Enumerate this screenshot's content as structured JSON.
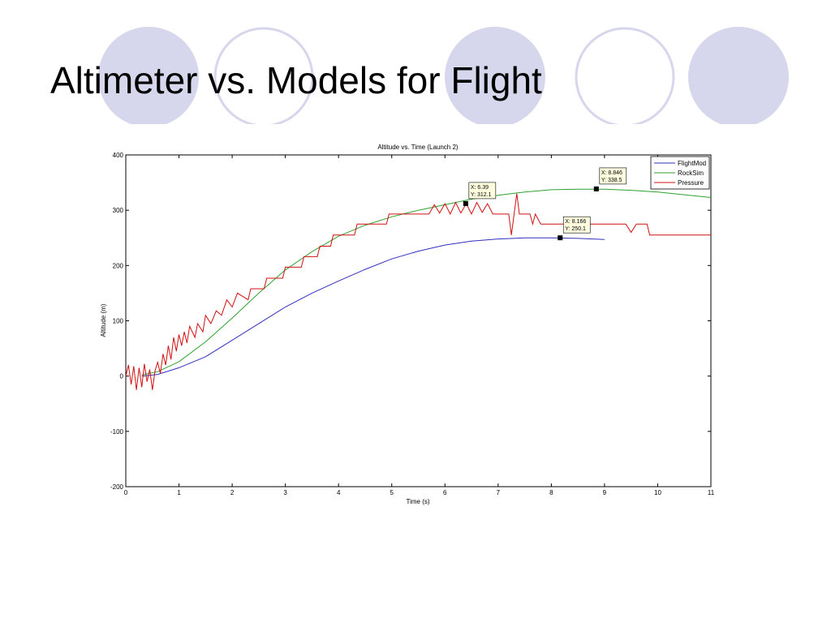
{
  "slide_title": "Altimeter vs. Models for Flight",
  "chart_data": {
    "type": "line",
    "title": "Altitude vs. Time (Launch 2)",
    "xlabel": "Time (s)",
    "ylabel": "Altitude (m)",
    "xlim": [
      0,
      11
    ],
    "xticks": [
      0,
      1,
      2,
      3,
      4,
      5,
      6,
      7,
      8,
      9,
      10,
      11
    ],
    "ylim": [
      -200,
      400
    ],
    "yticks": [
      -200,
      -100,
      0,
      100,
      200,
      300,
      400
    ],
    "legend": "top-right",
    "series": [
      {
        "name": "FlightMod",
        "color": "#3030c0",
        "x": [
          0.3,
          0.6,
          1,
          1.5,
          2,
          2.5,
          3,
          3.5,
          4,
          4.5,
          5,
          5.5,
          6,
          6.5,
          7,
          7.5,
          8,
          8.5,
          9
        ],
        "values": [
          0,
          3,
          15,
          35,
          65,
          95,
          125,
          150,
          172,
          193,
          212,
          226,
          237,
          244,
          248,
          250,
          250,
          249,
          247
        ]
      },
      {
        "name": "RockSim",
        "color": "#30a030",
        "x": [
          0.3,
          0.6,
          1,
          1.5,
          2,
          2.5,
          3,
          3.5,
          4,
          4.5,
          5,
          5.5,
          6,
          6.5,
          7,
          7.5,
          8,
          8.5,
          9,
          9.5,
          10,
          10.5,
          11
        ],
        "values": [
          2,
          8,
          26,
          62,
          105,
          150,
          192,
          225,
          253,
          273,
          288,
          300,
          310,
          320,
          327,
          333,
          337,
          338,
          338,
          336,
          333,
          328,
          323
        ]
      },
      {
        "name": "Pressure",
        "color": "#d01010",
        "x": [
          0,
          0.05,
          0.1,
          0.15,
          0.2,
          0.25,
          0.3,
          0.35,
          0.4,
          0.45,
          0.5,
          0.55,
          0.6,
          0.65,
          0.7,
          0.75,
          0.8,
          0.85,
          0.9,
          0.95,
          1.0,
          1.05,
          1.1,
          1.15,
          1.2,
          1.3,
          1.35,
          1.45,
          1.5,
          1.6,
          1.7,
          1.8,
          1.9,
          2.0,
          2.1,
          2.3,
          2.35,
          2.6,
          2.65,
          2.95,
          3.0,
          3.3,
          3.35,
          3.6,
          3.65,
          3.85,
          3.9,
          4.3,
          4.35,
          4.9,
          4.95,
          5.7,
          5.8,
          5.9,
          6.0,
          6.1,
          6.2,
          6.3,
          6.4,
          6.5,
          6.6,
          6.7,
          6.8,
          6.9,
          7.2,
          7.25,
          7.3,
          7.35,
          7.4,
          7.6,
          7.65,
          7.7,
          7.8,
          9.4,
          9.5,
          9.6,
          9.8,
          9.85,
          11
        ],
        "values": [
          0,
          20,
          -15,
          18,
          -25,
          15,
          -20,
          22,
          -10,
          12,
          -25,
          10,
          25,
          5,
          40,
          20,
          55,
          30,
          70,
          45,
          75,
          55,
          80,
          60,
          90,
          70,
          95,
          80,
          110,
          95,
          118,
          110,
          138,
          125,
          150,
          138,
          158,
          158,
          177,
          177,
          197,
          197,
          216,
          216,
          235,
          235,
          255,
          255,
          275,
          275,
          293,
          293,
          310,
          295,
          312,
          293,
          314,
          295,
          312,
          293,
          314,
          296,
          312,
          293,
          293,
          255,
          293,
          330,
          293,
          293,
          275,
          293,
          275,
          275,
          260,
          275,
          275,
          255,
          255
        ]
      }
    ],
    "annotations": [
      {
        "x": 6.39,
        "y": 312.1,
        "x_label": "X: 6.39",
        "y_label": "Y: 312.1"
      },
      {
        "x": 8.846,
        "y": 338.5,
        "x_label": "X: 8.846",
        "y_label": "Y: 338.5"
      },
      {
        "x": 8.166,
        "y": 250.1,
        "x_label": "X: 8.166",
        "y_label": "Y: 250.1"
      }
    ]
  }
}
